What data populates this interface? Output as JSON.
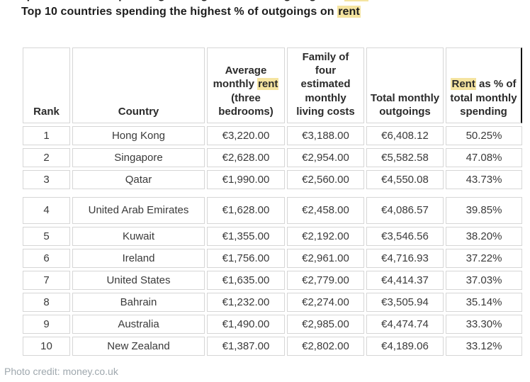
{
  "title": {
    "prefix": "Top 10 countries spending the highest % of outgoings on ",
    "highlight": "rent"
  },
  "photo_credit": "Photo credit: money.co.uk",
  "colors": {
    "highlight": "#f5e4a0",
    "border": "#d6d6d6",
    "caret": "#111111",
    "credit_text": "#9fa8ae"
  },
  "table": {
    "headers": [
      {
        "text": "Rank"
      },
      {
        "text": "Country"
      },
      {
        "prefix": "Average monthly ",
        "highlight": "rent",
        "suffix": " (three bedrooms)"
      },
      {
        "text": "Family of four estimated monthly living costs"
      },
      {
        "text": "Total monthly outgoings"
      },
      {
        "highlight": "Rent",
        "suffix": " as % of total monthly spending"
      }
    ],
    "column_keys": [
      "rank",
      "country",
      "avg-rent",
      "living-costs",
      "outgoings",
      "rent-pct"
    ]
  },
  "chart_data": {
    "type": "table",
    "title": "Top 10 countries spending the highest % of outgoings on rent",
    "columns": [
      "Rank",
      "Country",
      "Average monthly rent (three bedrooms)",
      "Family of four estimated monthly living costs",
      "Total monthly outgoings",
      "Rent as % of total monthly spending"
    ],
    "rows": [
      [
        "1",
        "Hong Kong",
        "€3,220.00",
        "€3,188.00",
        "€6,408.12",
        "50.25%"
      ],
      [
        "2",
        "Singapore",
        "€2,628.00",
        "€2,954.00",
        "€5,582.58",
        "47.08%"
      ],
      [
        "3",
        "Qatar",
        "€1,990.00",
        "€2,560.00",
        "€4,550.08",
        "43.73%"
      ],
      [
        "4",
        "United Arab Emirates",
        "€1,628.00",
        "€2,458.00",
        "€4,086.57",
        "39.85%"
      ],
      [
        "5",
        "Kuwait",
        "€1,355.00",
        "€2,192.00",
        "€3,546.56",
        "38.20%"
      ],
      [
        "6",
        "Ireland",
        "€1,756.00",
        "€2,961.00",
        "€4,716.93",
        "37.22%"
      ],
      [
        "7",
        "United States",
        "€1,635.00",
        "€2,779.00",
        "€4,414.37",
        "37.03%"
      ],
      [
        "8",
        "Bahrain",
        "€1,232.00",
        "€2,274.00",
        "€3,505.94",
        "35.14%"
      ],
      [
        "9",
        "Australia",
        "€1,490.00",
        "€2,985.00",
        "€4,474.74",
        "33.30%"
      ],
      [
        "10",
        "New Zealand",
        "€1,387.00",
        "€2,802.00",
        "€4,189.06",
        "33.12%"
      ]
    ]
  }
}
